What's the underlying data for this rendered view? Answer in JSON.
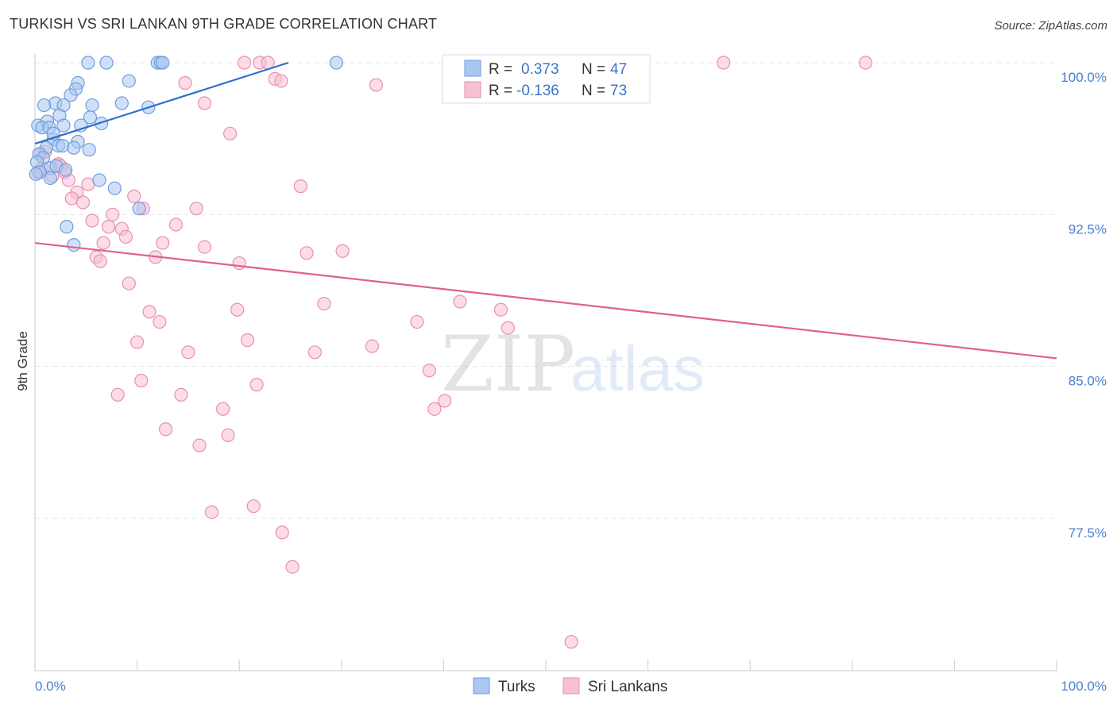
{
  "header": {
    "title": "TURKISH VS SRI LANKAN 9TH GRADE CORRELATION CHART",
    "source": "Source: ZipAtlas.com"
  },
  "watermark": {
    "zip": "ZIP",
    "atlas": "atlas"
  },
  "colors": {
    "turks_fill": "#a9c8f0",
    "turks_stroke": "#6d9ee0",
    "turks_line": "#2e6fd0",
    "srilankans_fill": "#f7c0d4",
    "srilankans_stroke": "#e890b0",
    "srilankans_line": "#e0608f"
  },
  "legend": {
    "r_label": "R =",
    "n_label": "N =",
    "turks": {
      "r": "0.373",
      "n": "47"
    },
    "srilankans": {
      "r": "-0.136",
      "n": "73"
    }
  },
  "bottom_legend": {
    "turks": "Turks",
    "srilankans": "Sri Lankans"
  },
  "chart_data": {
    "type": "scatter",
    "title": "TURKISH VS SRI LANKAN 9TH GRADE CORRELATION CHART",
    "xlabel": "",
    "ylabel": "9th Grade",
    "xlim": [
      0,
      100
    ],
    "ylim": [
      70.5,
      100.6
    ],
    "x_tick_labels": [
      "0.0%",
      "100.0%"
    ],
    "y_ticks": [
      100.0,
      92.5,
      85.0,
      77.5
    ],
    "y_tick_labels": [
      "100.0%",
      "92.5%",
      "85.0%",
      "77.5%"
    ],
    "grid": true,
    "legend_position": "top-center",
    "series": [
      {
        "name": "Turks",
        "r": 0.373,
        "n": 47,
        "trend": {
          "x": [
            0,
            24.8
          ],
          "y": [
            96.0,
            100.0
          ]
        },
        "points": [
          [
            5.2,
            100
          ],
          [
            7.0,
            100
          ],
          [
            12.0,
            100
          ],
          [
            12.3,
            100
          ],
          [
            12.5,
            100
          ],
          [
            29.5,
            100
          ],
          [
            4.2,
            99.0
          ],
          [
            9.2,
            99.1
          ],
          [
            4.0,
            98.7
          ],
          [
            3.5,
            98.4
          ],
          [
            2.0,
            98.0
          ],
          [
            0.9,
            97.9
          ],
          [
            5.6,
            97.9
          ],
          [
            8.5,
            98.0
          ],
          [
            2.8,
            97.9
          ],
          [
            11.1,
            97.8
          ],
          [
            2.4,
            97.4
          ],
          [
            5.4,
            97.3
          ],
          [
            0.3,
            96.9
          ],
          [
            1.2,
            97.1
          ],
          [
            0.7,
            96.8
          ],
          [
            1.4,
            96.8
          ],
          [
            2.8,
            96.9
          ],
          [
            4.5,
            96.9
          ],
          [
            6.5,
            97.0
          ],
          [
            1.8,
            96.2
          ],
          [
            4.2,
            96.1
          ],
          [
            2.3,
            95.9
          ],
          [
            2.7,
            95.9
          ],
          [
            1.1,
            95.8
          ],
          [
            3.8,
            95.8
          ],
          [
            5.3,
            95.7
          ],
          [
            0.4,
            95.5
          ],
          [
            0.8,
            95.3
          ],
          [
            0.2,
            95.1
          ],
          [
            1.5,
            94.8
          ],
          [
            6.3,
            94.2
          ],
          [
            7.8,
            93.8
          ],
          [
            10.2,
            92.8
          ],
          [
            3.1,
            91.9
          ],
          [
            3.8,
            91.0
          ],
          [
            1.5,
            94.3
          ],
          [
            0.5,
            94.6
          ],
          [
            2.1,
            94.9
          ],
          [
            3.0,
            94.7
          ],
          [
            0.1,
            94.5
          ],
          [
            1.8,
            96.5
          ]
        ]
      },
      {
        "name": "Sri Lankans",
        "r": -0.136,
        "n": 73,
        "trend": {
          "x": [
            0,
            100
          ],
          "y": [
            91.1,
            85.4
          ]
        },
        "points": [
          [
            20.5,
            100
          ],
          [
            22.0,
            100
          ],
          [
            22.8,
            100
          ],
          [
            67.4,
            100
          ],
          [
            81.3,
            100
          ],
          [
            23.5,
            99.2
          ],
          [
            24.1,
            99.1
          ],
          [
            14.7,
            99.0
          ],
          [
            33.4,
            98.9
          ],
          [
            16.6,
            98.0
          ],
          [
            19.1,
            96.5
          ],
          [
            0.6,
            95.5
          ],
          [
            1.0,
            95.6
          ],
          [
            2.3,
            95.0
          ],
          [
            0.3,
            94.6
          ],
          [
            2.9,
            94.6
          ],
          [
            1.7,
            94.4
          ],
          [
            3.3,
            94.2
          ],
          [
            5.2,
            94.0
          ],
          [
            26.0,
            93.9
          ],
          [
            4.1,
            93.6
          ],
          [
            3.6,
            93.3
          ],
          [
            9.7,
            93.4
          ],
          [
            4.7,
            93.1
          ],
          [
            10.6,
            92.8
          ],
          [
            15.8,
            92.8
          ],
          [
            7.6,
            92.5
          ],
          [
            5.6,
            92.2
          ],
          [
            13.8,
            92.0
          ],
          [
            7.2,
            91.9
          ],
          [
            8.5,
            91.8
          ],
          [
            8.9,
            91.4
          ],
          [
            6.7,
            91.1
          ],
          [
            12.5,
            91.1
          ],
          [
            16.6,
            90.9
          ],
          [
            30.1,
            90.7
          ],
          [
            26.6,
            90.6
          ],
          [
            6.0,
            90.4
          ],
          [
            11.8,
            90.4
          ],
          [
            6.4,
            90.2
          ],
          [
            20.0,
            90.1
          ],
          [
            9.2,
            89.1
          ],
          [
            41.6,
            88.2
          ],
          [
            28.3,
            88.1
          ],
          [
            19.8,
            87.8
          ],
          [
            45.6,
            87.8
          ],
          [
            11.2,
            87.7
          ],
          [
            12.2,
            87.2
          ],
          [
            37.4,
            87.2
          ],
          [
            46.3,
            86.9
          ],
          [
            10.0,
            86.2
          ],
          [
            20.8,
            86.3
          ],
          [
            33.0,
            86.0
          ],
          [
            15.0,
            85.7
          ],
          [
            27.4,
            85.7
          ],
          [
            38.6,
            84.8
          ],
          [
            10.4,
            84.3
          ],
          [
            21.7,
            84.1
          ],
          [
            8.1,
            83.6
          ],
          [
            14.3,
            83.6
          ],
          [
            40.1,
            83.3
          ],
          [
            18.4,
            82.9
          ],
          [
            39.1,
            82.9
          ],
          [
            12.8,
            81.9
          ],
          [
            18.9,
            81.6
          ],
          [
            16.1,
            81.1
          ],
          [
            21.4,
            78.1
          ],
          [
            17.3,
            77.8
          ],
          [
            24.2,
            76.8
          ],
          [
            25.2,
            75.1
          ],
          [
            52.5,
            71.4
          ],
          [
            0.7,
            94.8
          ],
          [
            2.5,
            94.9
          ]
        ]
      }
    ]
  }
}
